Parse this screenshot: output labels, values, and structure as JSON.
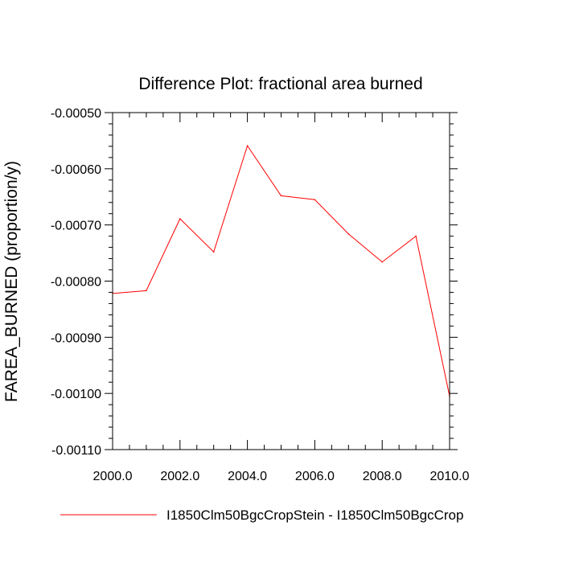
{
  "chart_data": {
    "type": "line",
    "title": "Difference Plot: fractional area burned",
    "xlabel": "",
    "ylabel": "FAREA_BURNED  (proportion/y)",
    "xlim": [
      2000,
      2010
    ],
    "ylim": [
      -0.0011,
      -0.0005
    ],
    "x_ticks": [
      2000,
      2002,
      2004,
      2006,
      2008,
      2010
    ],
    "x_tick_labels": [
      "2000.0",
      "2002.0",
      "2004.0",
      "2006.0",
      "2008.0",
      "2010.0"
    ],
    "y_ticks": [
      -0.0005,
      -0.0006,
      -0.0007,
      -0.0008,
      -0.0009,
      -0.001,
      -0.0011
    ],
    "y_tick_labels": [
      "-0.00050",
      "-0.00060",
      "-0.00070",
      "-0.00080",
      "-0.00090",
      "-0.00100",
      "-0.00110"
    ],
    "grid": false,
    "legend_position": "bottom",
    "series": [
      {
        "name": "I1850Clm50BgcCropStein - I1850Clm50BgcCrop",
        "color": "#ff0000",
        "x": [
          2000,
          2001,
          2002,
          2003,
          2004,
          2005,
          2006,
          2007,
          2008,
          2009,
          2010
        ],
        "y": [
          -0.000822,
          -0.000817,
          -0.000689,
          -0.000748,
          -0.000559,
          -0.000648,
          -0.000655,
          -0.000716,
          -0.000766,
          -0.00072,
          -0.001005
        ]
      }
    ]
  }
}
